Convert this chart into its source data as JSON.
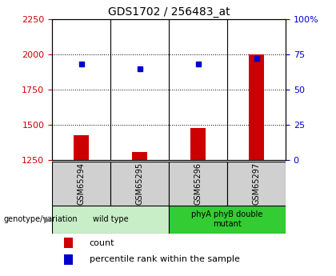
{
  "title": "GDS1702 / 256483_at",
  "samples": [
    "GSM65294",
    "GSM65295",
    "GSM65296",
    "GSM65297"
  ],
  "counts": [
    1425,
    1310,
    1480,
    2000
  ],
  "percentile_ranks": [
    68,
    65,
    68,
    72
  ],
  "baseline": 1250,
  "left_ylim": [
    1250,
    2250
  ],
  "left_yticks": [
    1250,
    1500,
    1750,
    2000,
    2250
  ],
  "right_ylim": [
    0,
    100
  ],
  "right_yticks": [
    0,
    25,
    50,
    75,
    100
  ],
  "left_axis_color": "#cc0000",
  "right_axis_color": "#0000cc",
  "bar_color": "#cc0000",
  "marker_color": "#0000cc",
  "groups": [
    {
      "label": "wild type",
      "indices": [
        0,
        1
      ],
      "color": "#c8eec8"
    },
    {
      "label": "phyA phyB double\nmutant",
      "indices": [
        2,
        3
      ],
      "color": "#33cc33"
    }
  ],
  "group_label_prefix": "genotype/variation",
  "legend_count_label": "count",
  "legend_pct_label": "percentile rank within the sample",
  "title_fontsize": 10,
  "tick_fontsize": 8,
  "sample_bg": "#d0d0d0",
  "bar_width": 0.25
}
